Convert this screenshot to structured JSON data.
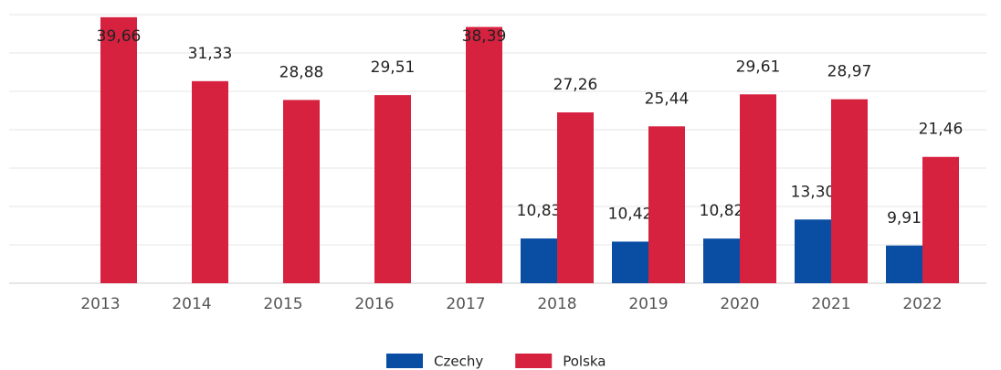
{
  "chart_data": {
    "type": "bar",
    "categories": [
      "2013",
      "2014",
      "2015",
      "2016",
      "2017",
      "2018",
      "2019",
      "2020",
      "2021",
      "2022"
    ],
    "series": [
      {
        "name": "Czechy",
        "color": "#0a4ea3",
        "values": [
          null,
          null,
          null,
          null,
          null,
          10.83,
          10.42,
          10.82,
          13.3,
          9.91
        ],
        "value_labels": [
          null,
          null,
          null,
          null,
          null,
          "10,83",
          "10,42",
          "10,82",
          "13,30",
          "9,91"
        ]
      },
      {
        "name": "Polska",
        "color": "#d6213f",
        "values": [
          39.66,
          31.33,
          28.88,
          29.51,
          38.39,
          27.26,
          25.44,
          29.61,
          28.97,
          21.46
        ],
        "value_labels": [
          "39,66",
          "31,33",
          "28,88",
          "29,51",
          "38,39",
          "27,26",
          "25,44",
          "29,61",
          "28,97",
          "21,46"
        ]
      }
    ],
    "ylim": [
      5,
      40
    ],
    "yticks": [
      5,
      10,
      15,
      20,
      25,
      30,
      35,
      40
    ],
    "grid": true
  }
}
